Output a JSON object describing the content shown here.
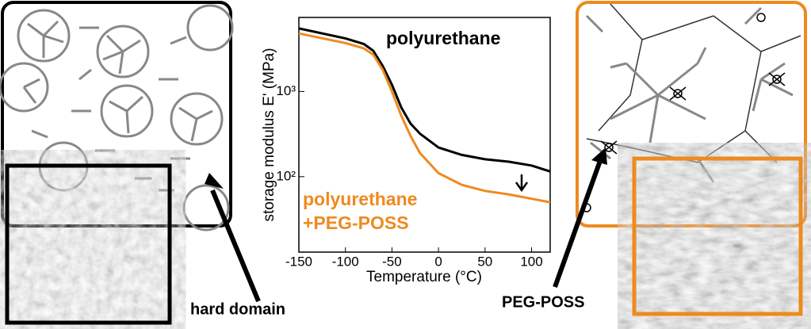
{
  "chart_data": {
    "type": "line",
    "x_label": "Temperature (°C)",
    "y_label": "storage modulus E' (MPa)",
    "yscale": "log",
    "x": [
      -150,
      -100,
      -80,
      -70,
      -60,
      -50,
      -40,
      -30,
      -20,
      0,
      25,
      50,
      75,
      100,
      120
    ],
    "series": [
      {
        "name": "polyurethane",
        "color": "#000000",
        "values": [
          5500,
          4200,
          3600,
          3000,
          2000,
          1200,
          650,
          420,
          320,
          220,
          180,
          160,
          150,
          135,
          115
        ]
      },
      {
        "name": "polyurethane +PEG-POSS",
        "color": "#ee8a1e",
        "values": [
          4800,
          3700,
          3200,
          2700,
          1800,
          1000,
          520,
          300,
          190,
          110,
          80,
          68,
          62,
          55,
          50
        ]
      }
    ],
    "xlim": [
      -150,
      120
    ],
    "xticks": [
      -150,
      -100,
      -50,
      0,
      50,
      100
    ],
    "ylim": [
      13,
      7400
    ],
    "yticks": [
      {
        "value": 100,
        "label": "10²"
      },
      {
        "value": 1000,
        "label": "10³"
      }
    ],
    "annotations": [
      "hard domain",
      "PEG-POSS"
    ]
  }
}
